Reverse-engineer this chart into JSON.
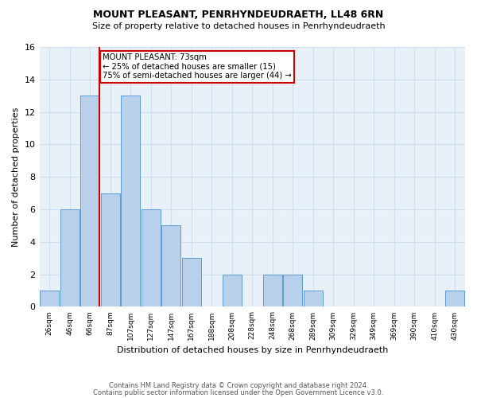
{
  "title1": "MOUNT PLEASANT, PENRHYNDEUDRAETH, LL48 6RN",
  "title2": "Size of property relative to detached houses in Penrhyndeudraeth",
  "xlabel": "Distribution of detached houses by size in Penrhyndeudraeth",
  "ylabel": "Number of detached properties",
  "footnote1": "Contains HM Land Registry data © Crown copyright and database right 2024.",
  "footnote2": "Contains public sector information licensed under the Open Government Licence v3.0.",
  "bin_labels": [
    "26sqm",
    "46sqm",
    "66sqm",
    "87sqm",
    "107sqm",
    "127sqm",
    "147sqm",
    "167sqm",
    "188sqm",
    "208sqm",
    "228sqm",
    "248sqm",
    "268sqm",
    "289sqm",
    "309sqm",
    "329sqm",
    "349sqm",
    "369sqm",
    "390sqm",
    "410sqm",
    "430sqm"
  ],
  "bar_values": [
    1,
    6,
    13,
    7,
    13,
    6,
    5,
    3,
    0,
    2,
    0,
    2,
    2,
    1,
    0,
    0,
    0,
    0,
    0,
    0,
    1
  ],
  "bar_color": "#b8d0ea",
  "bar_edge_color": "#5b9bd5",
  "vline_bin_index": 2,
  "annotation_title": "MOUNT PLEASANT: 73sqm",
  "annotation_line1": "← 25% of detached houses are smaller (15)",
  "annotation_line2": "75% of semi-detached houses are larger (44) →",
  "ylim": [
    0,
    16
  ],
  "yticks": [
    0,
    2,
    4,
    6,
    8,
    10,
    12,
    14,
    16
  ],
  "vline_color": "#cc0000",
  "annotation_box_color": "#cc0000",
  "grid_color": "#d0dff0",
  "bg_color": "#e8f0f8",
  "n_bins": 21
}
